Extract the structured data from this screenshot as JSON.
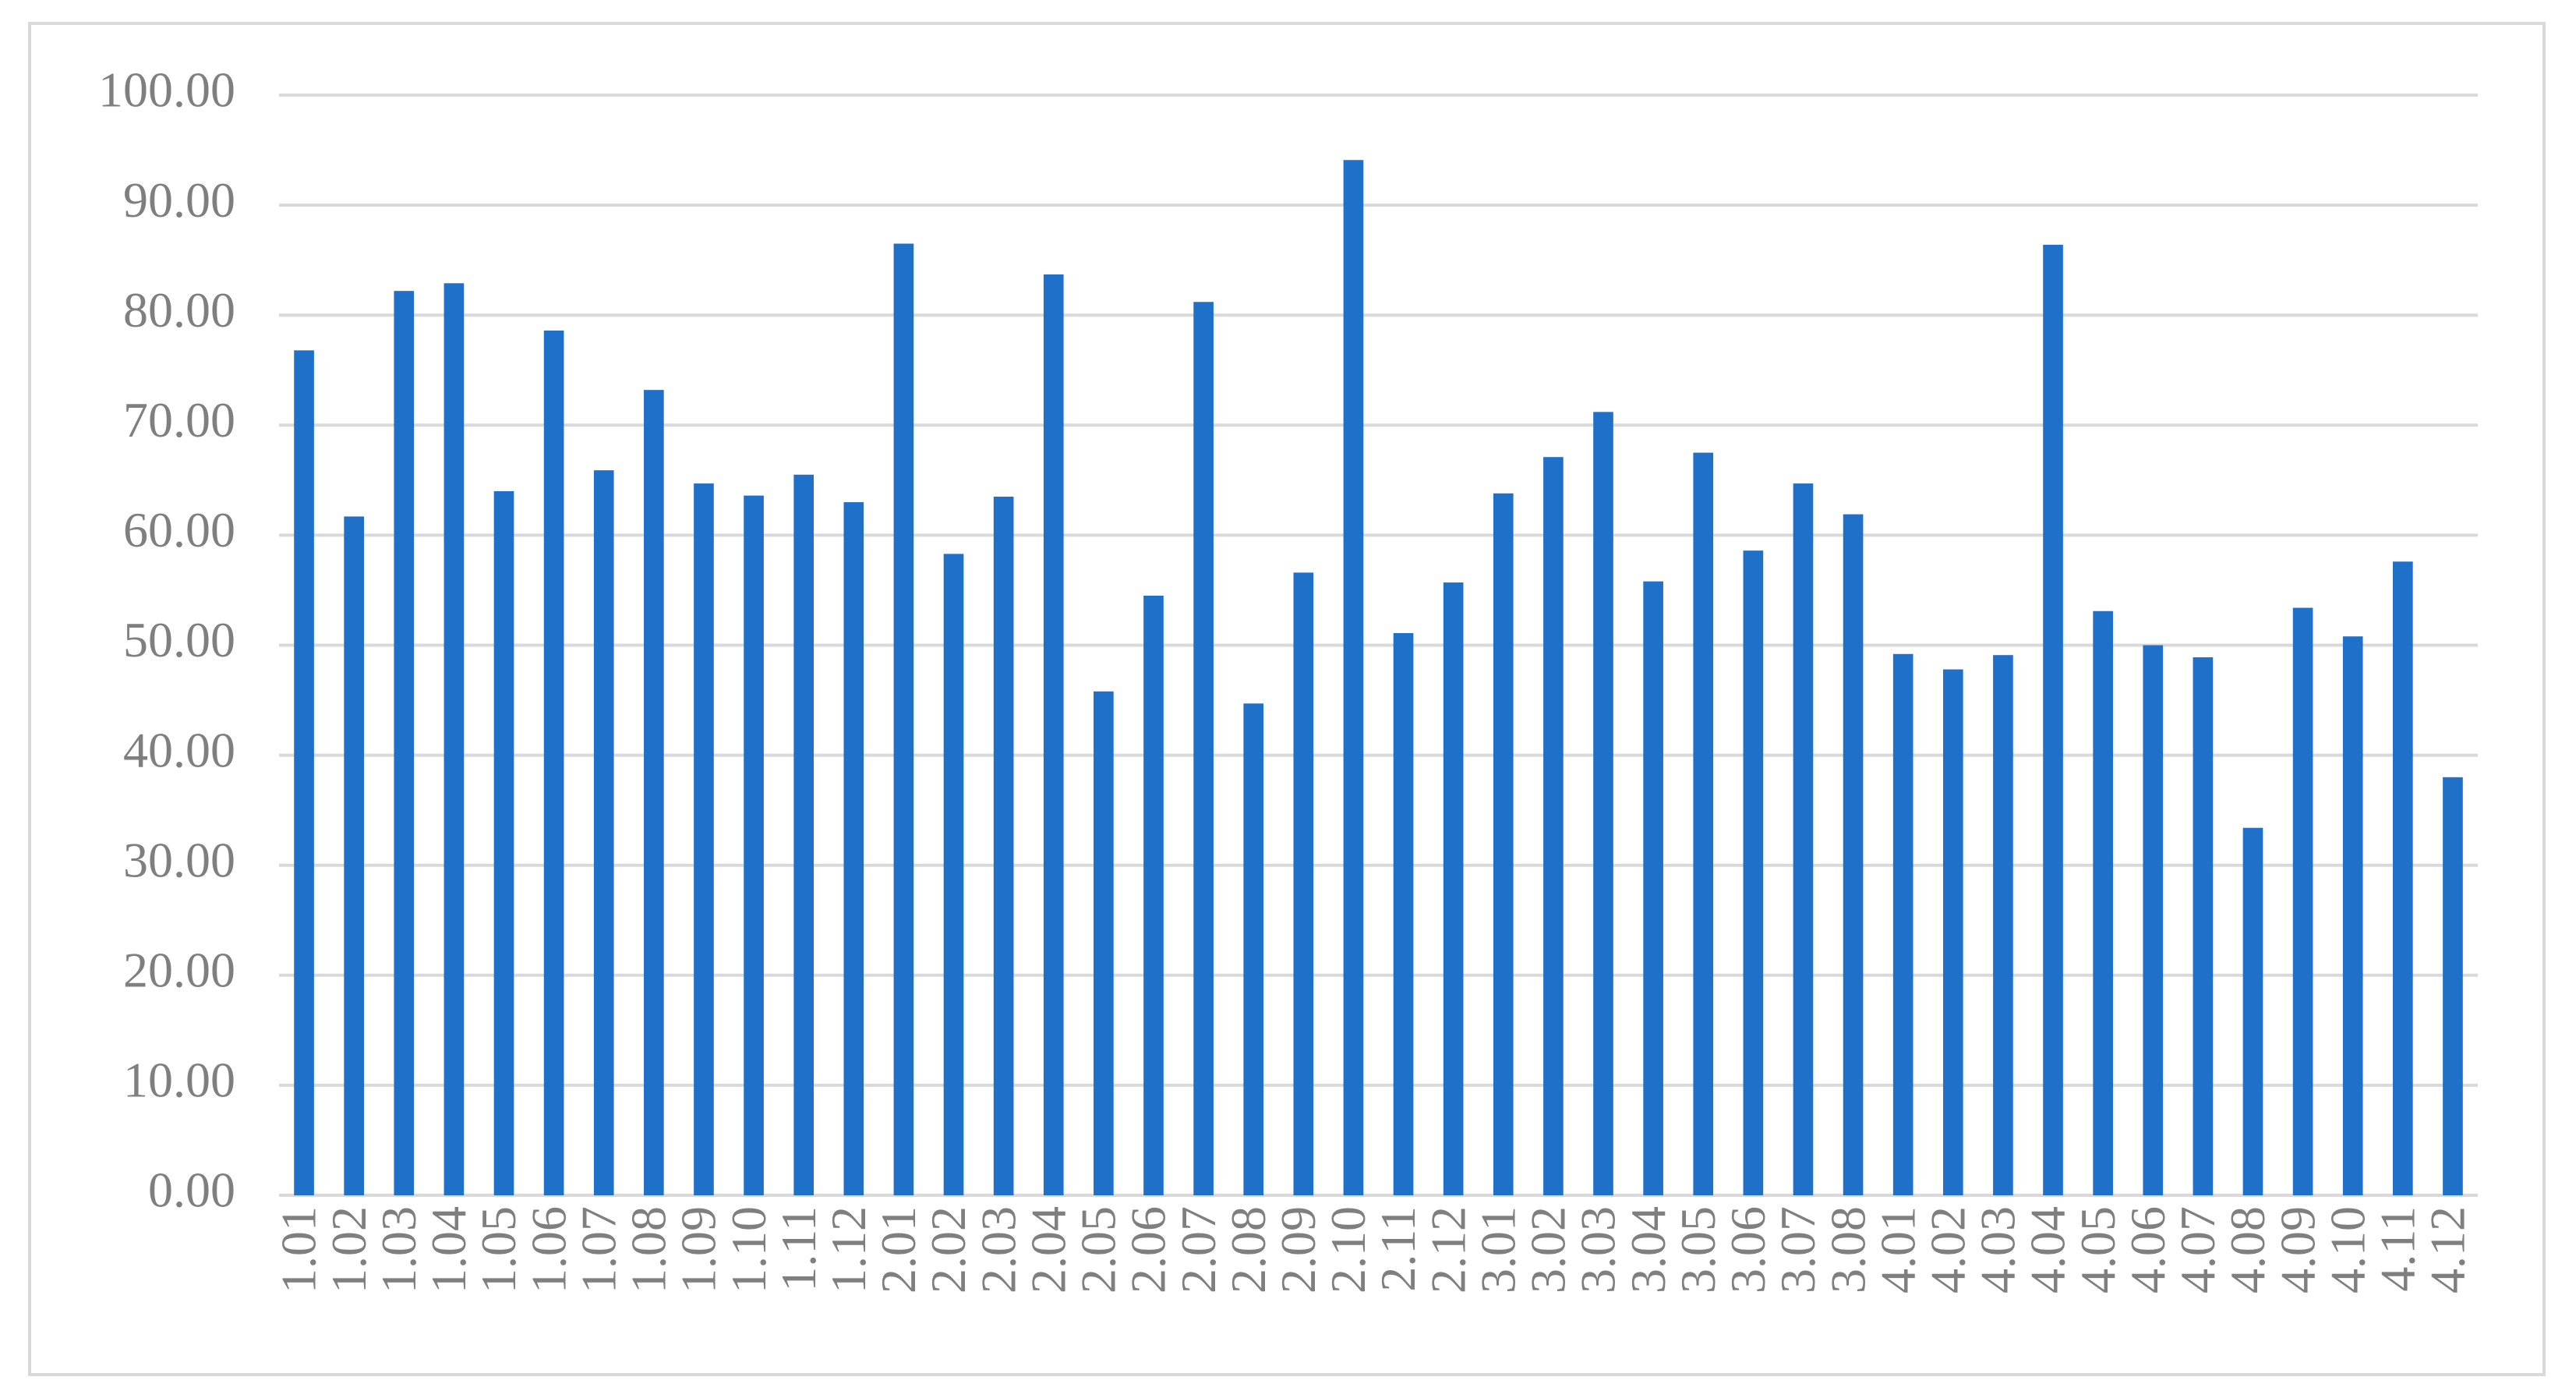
{
  "chart_data": {
    "type": "bar",
    "categories": [
      "1.01",
      "1.02",
      "1.03",
      "1.04",
      "1.05",
      "1.06",
      "1.07",
      "1.08",
      "1.09",
      "1.10",
      "1.11",
      "1.12",
      "2.01",
      "2.02",
      "2.03",
      "2.04",
      "2.05",
      "2.06",
      "2.07",
      "2.08",
      "2.09",
      "2.10",
      "2.11",
      "2.12",
      "3.01",
      "3.02",
      "3.03",
      "3.04",
      "3.05",
      "3.06",
      "3.07",
      "3.08",
      "4.01",
      "4.02",
      "4.03",
      "4.04",
      "4.05",
      "4.06",
      "4.07",
      "4.08",
      "4.09",
      "4.10",
      "4.11",
      "4.12"
    ],
    "values": [
      76.8,
      61.7,
      82.2,
      82.9,
      64.0,
      78.6,
      65.9,
      73.2,
      64.7,
      63.6,
      65.5,
      63.0,
      86.5,
      58.3,
      63.5,
      83.7,
      45.8,
      54.5,
      81.2,
      44.7,
      56.6,
      94.1,
      51.1,
      55.7,
      63.8,
      67.1,
      71.2,
      55.8,
      67.5,
      58.6,
      64.7,
      61.9,
      49.2,
      47.8,
      49.1,
      86.4,
      53.1,
      50.0,
      48.9,
      33.4,
      53.4,
      50.8,
      57.6,
      38.0
    ],
    "color": "#1f70c8",
    "ylim": [
      0,
      100
    ],
    "yticks": [
      {
        "value": 0,
        "label": "0.00"
      },
      {
        "value": 10,
        "label": "10.00"
      },
      {
        "value": 20,
        "label": "20.00"
      },
      {
        "value": 30,
        "label": "30.00"
      },
      {
        "value": 40,
        "label": "40.00"
      },
      {
        "value": 50,
        "label": "50.00"
      },
      {
        "value": 60,
        "label": "60.00"
      },
      {
        "value": 70,
        "label": "70.00"
      },
      {
        "value": 80,
        "label": "80.00"
      },
      {
        "value": 90,
        "label": "90.00"
      },
      {
        "value": 100,
        "label": "100.00"
      }
    ],
    "grid": true
  }
}
